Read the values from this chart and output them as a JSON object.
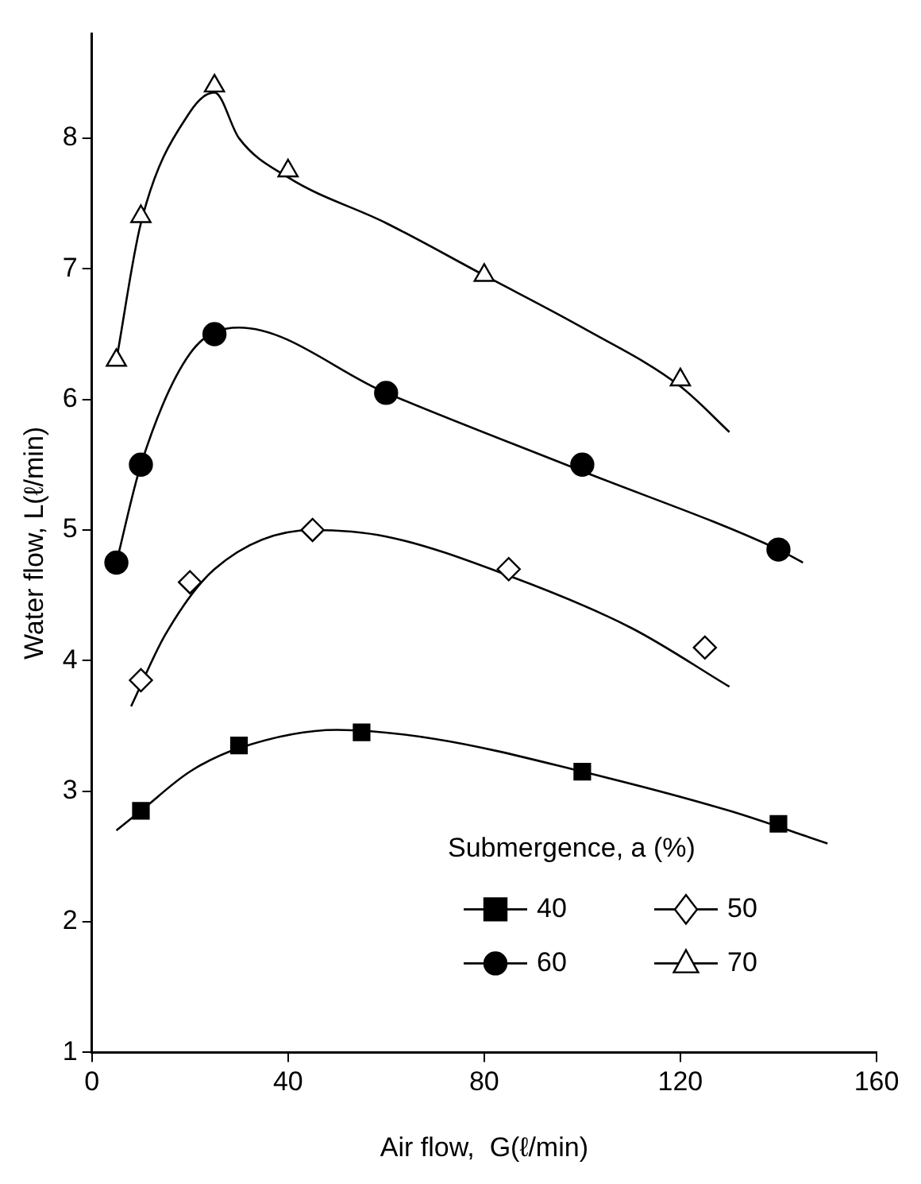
{
  "chart_data": {
    "type": "scatter",
    "xlabel": "Air flow,  G(ℓ/min)",
    "ylabel": "Water flow, L(ℓ/min)",
    "legend_title": "Submergence, a (%)",
    "xlim": [
      0,
      160
    ],
    "xticks": [
      0,
      40,
      80,
      120,
      160
    ],
    "ylim": [
      1,
      8.8
    ],
    "yticks": [
      1,
      2,
      3,
      4,
      5,
      6,
      7,
      8
    ],
    "grid": false,
    "legend": "bottom right",
    "series": [
      {
        "name": "40",
        "type": "scatter",
        "marker": "square",
        "color": "#000000",
        "x": [
          10,
          30,
          55,
          100,
          140
        ],
        "values": [
          2.85,
          3.35,
          3.45,
          3.15,
          2.75
        ]
      },
      {
        "name": "50",
        "type": "scatter",
        "marker": "diamond",
        "color": "#000000",
        "x": [
          10,
          20,
          45,
          85,
          125
        ],
        "values": [
          3.85,
          4.6,
          5.0,
          4.7,
          4.1
        ]
      },
      {
        "name": "60",
        "type": "scatter",
        "marker": "circle",
        "color": "#000000",
        "x": [
          5,
          10,
          25,
          60,
          100,
          140
        ],
        "values": [
          4.75,
          5.5,
          6.5,
          6.05,
          5.5,
          4.85
        ]
      },
      {
        "name": "70",
        "type": "scatter",
        "marker": "triangle",
        "color": "#000000",
        "x": [
          5,
          10,
          25,
          40,
          80,
          120
        ],
        "values": [
          6.3,
          7.4,
          8.4,
          7.75,
          6.95,
          6.15
        ]
      },
      {
        "type": "line",
        "marker": "none",
        "color": "#000000",
        "x": [
          5,
          10,
          20,
          30,
          50,
          70,
          100,
          130,
          150
        ],
        "values": [
          2.7,
          2.85,
          3.15,
          3.33,
          3.47,
          3.4,
          3.15,
          2.85,
          2.6
        ]
      },
      {
        "type": "line",
        "marker": "none",
        "color": "#000000",
        "x": [
          8,
          15,
          25,
          45,
          60,
          85,
          110,
          130
        ],
        "values": [
          3.65,
          4.2,
          4.7,
          5.0,
          4.95,
          4.65,
          4.25,
          3.8
        ]
      },
      {
        "type": "line",
        "marker": "none",
        "color": "#000000",
        "x": [
          5,
          10,
          20,
          30,
          60,
          100,
          140,
          145
        ],
        "values": [
          4.75,
          5.5,
          6.35,
          6.55,
          6.05,
          5.45,
          4.85,
          4.75
        ]
      },
      {
        "type": "line",
        "marker": "none",
        "color": "#000000",
        "x": [
          5,
          10,
          20,
          25,
          30,
          40,
          60,
          80,
          100,
          120,
          130
        ],
        "values": [
          6.3,
          7.35,
          8.2,
          8.35,
          8.0,
          7.7,
          7.35,
          6.95,
          6.55,
          6.1,
          5.75
        ]
      }
    ]
  }
}
